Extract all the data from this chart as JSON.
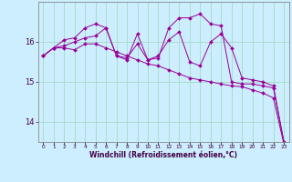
{
  "xlabel": "Windchill (Refroidissement éolien,°C)",
  "bg_color": "#cceeff",
  "grid_color": "#aaddcc",
  "line_color": "#990099",
  "x": [
    0,
    1,
    2,
    3,
    4,
    5,
    6,
    7,
    8,
    9,
    10,
    11,
    12,
    13,
    14,
    15,
    16,
    17,
    18,
    19,
    20,
    21,
    22,
    23
  ],
  "line1": [
    15.65,
    15.85,
    15.85,
    15.8,
    15.95,
    15.95,
    15.85,
    15.75,
    15.65,
    15.55,
    15.45,
    15.4,
    15.3,
    15.2,
    15.1,
    15.05,
    15.0,
    14.95,
    14.9,
    14.88,
    14.8,
    14.72,
    14.6,
    13.45
  ],
  "line2": [
    15.65,
    15.85,
    16.05,
    16.1,
    16.35,
    16.45,
    16.35,
    15.65,
    15.6,
    15.95,
    15.55,
    15.65,
    16.05,
    16.25,
    15.5,
    15.4,
    16.0,
    16.2,
    15.85,
    15.1,
    15.05,
    15.0,
    14.9,
    13.5
  ],
  "line3": [
    15.65,
    15.85,
    15.9,
    16.0,
    16.1,
    16.15,
    16.35,
    15.65,
    15.55,
    16.2,
    15.55,
    15.6,
    16.35,
    16.6,
    16.6,
    16.7,
    16.45,
    16.4,
    15.0,
    14.95,
    14.95,
    14.9,
    14.85,
    13.5
  ],
  "ylim": [
    13.5,
    17.0
  ],
  "yticks": [
    14,
    15,
    16
  ],
  "xlim": [
    -0.5,
    23.5
  ]
}
